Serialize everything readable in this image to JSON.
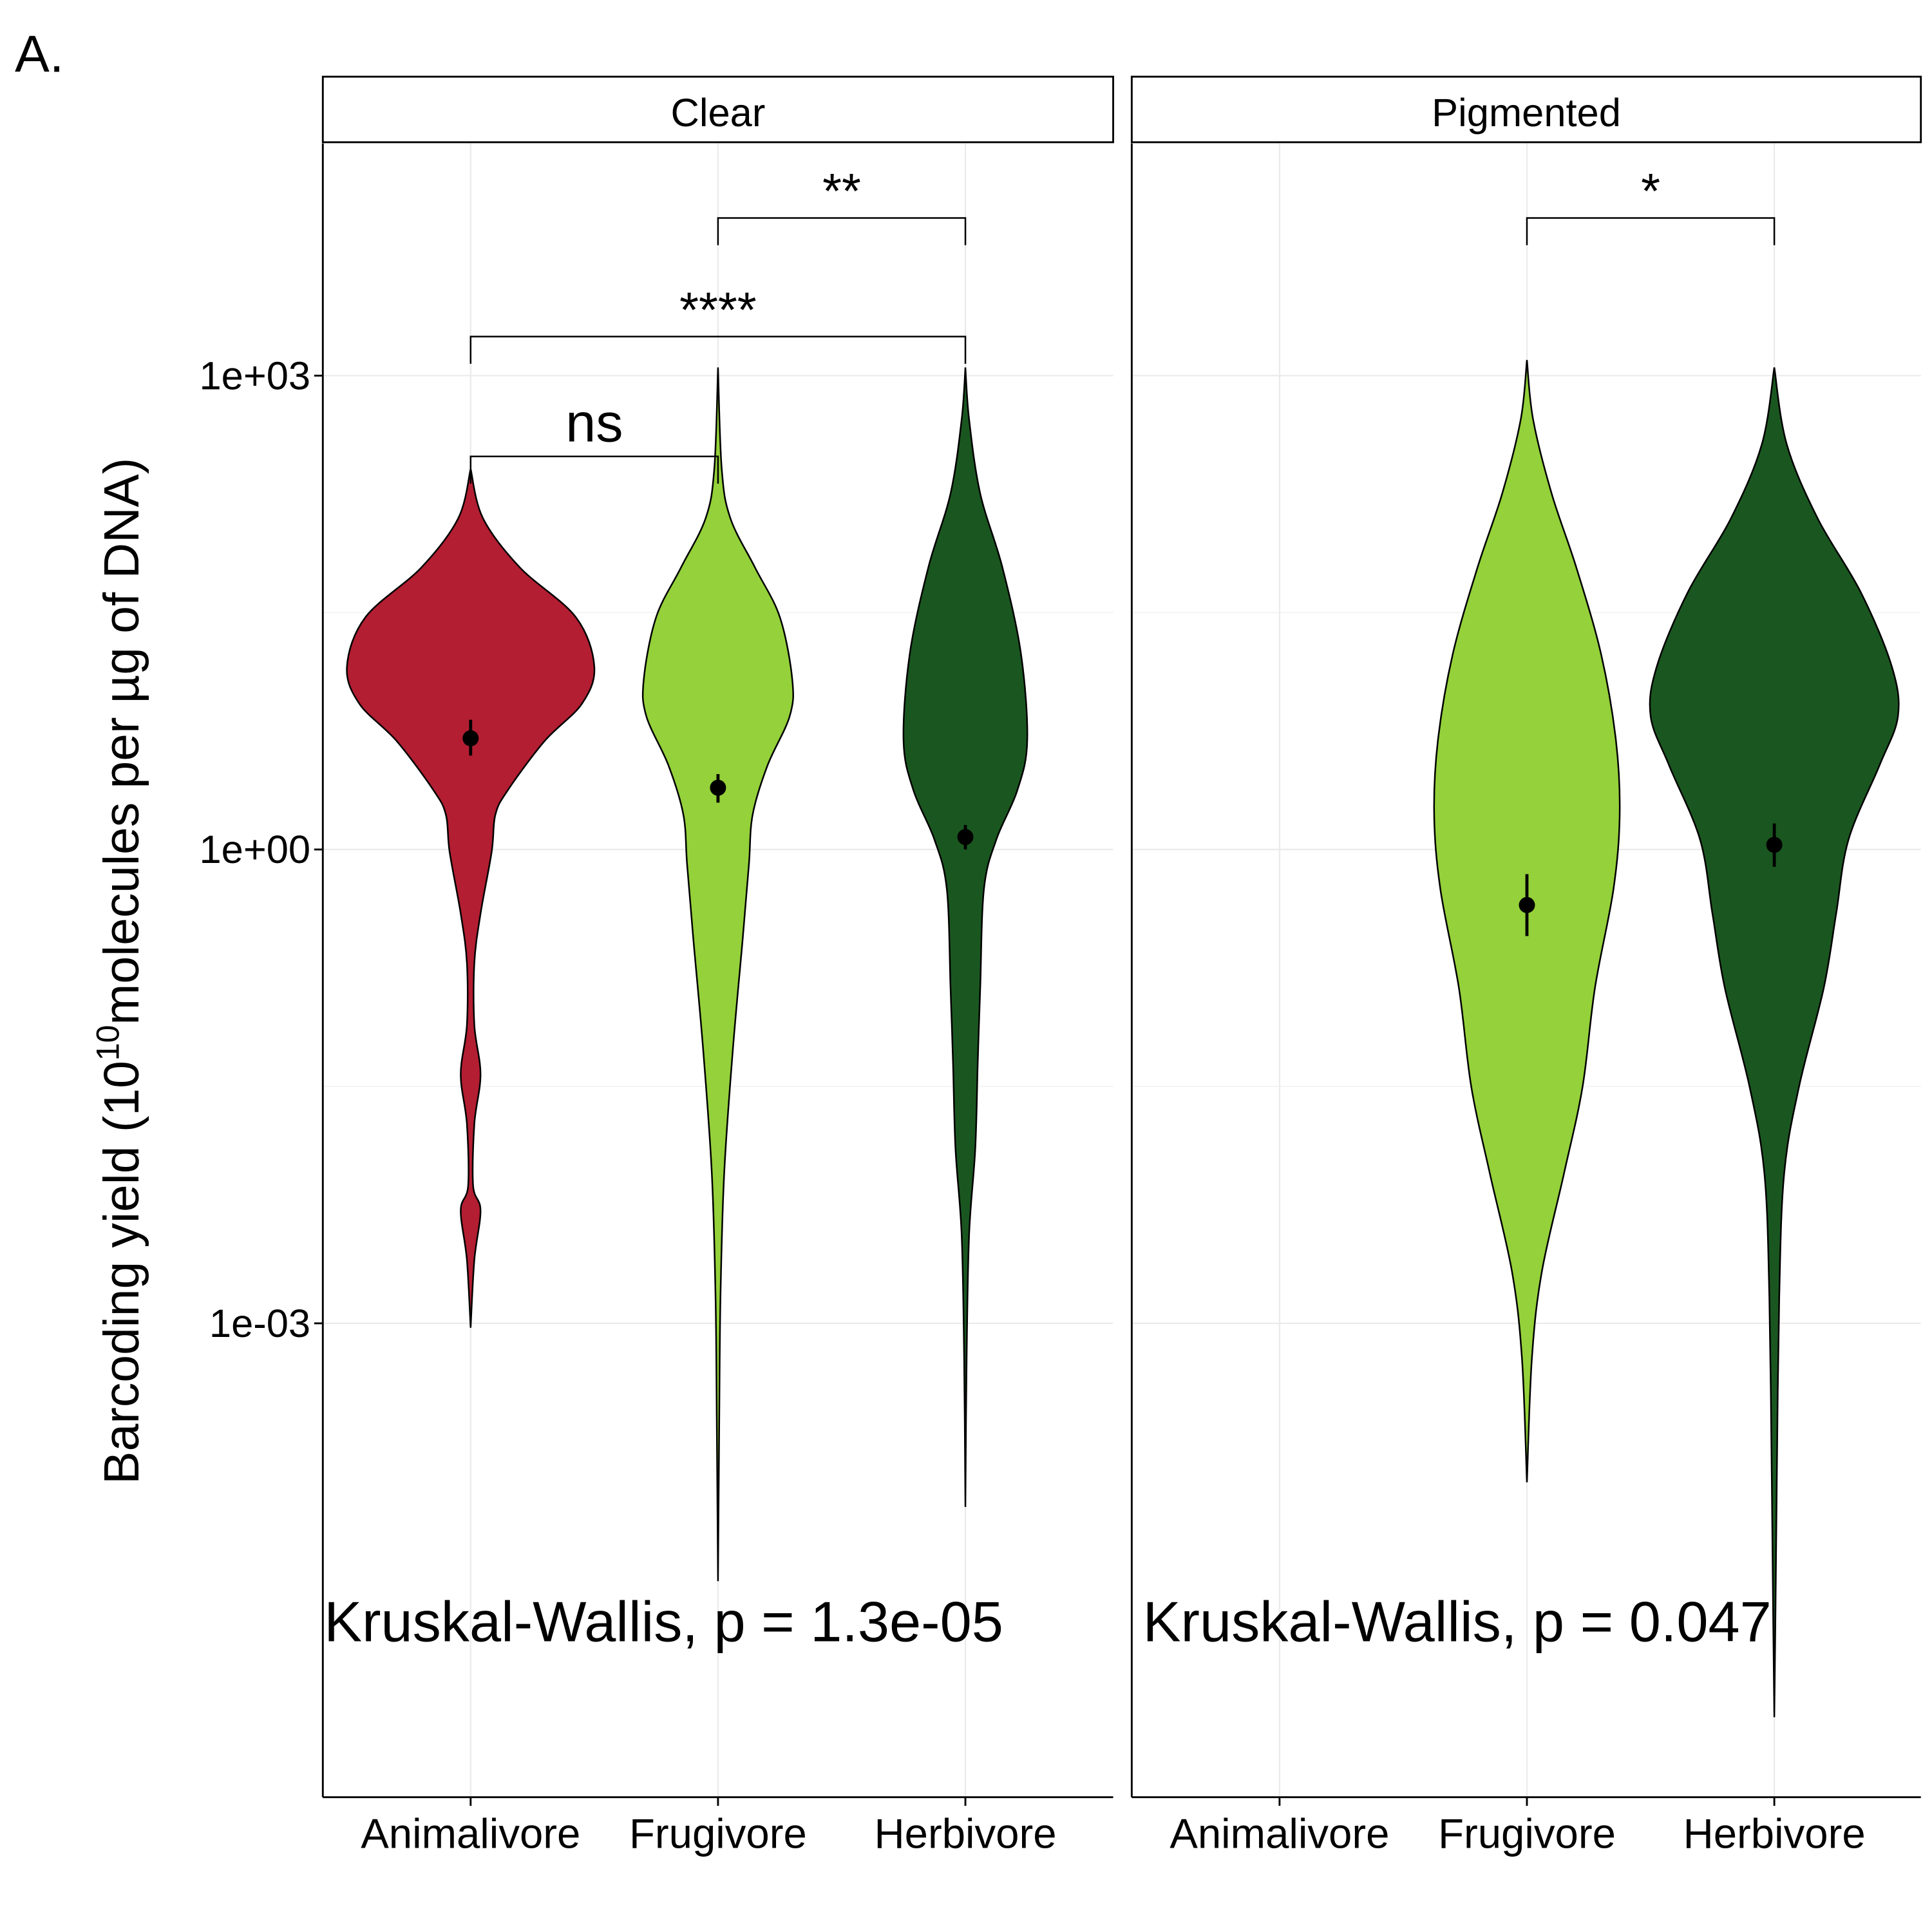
{
  "panel_tag": "A.",
  "y_axis": {
    "label": {
      "before": "Barcoding yield (10",
      "sup": "10",
      "after": "molecules per µg of DNA)"
    },
    "log": true,
    "ylim": [
      1e-06,
      29500
    ],
    "yticks": [
      {
        "value": 1000,
        "label": "1e+03"
      },
      {
        "value": 1,
        "label": "1e+00"
      },
      {
        "value": 0.001,
        "label": "1e-03"
      }
    ],
    "minor_grid": [
      31.62,
      0.03162
    ],
    "grid": true
  },
  "chart_data": [
    {
      "type": "violin",
      "facet": "Clear",
      "categories": [
        "Animalivore",
        "Frugivore",
        "Herbivore"
      ],
      "violins": [
        {
          "color": "#b31e32",
          "density_y": [
            257,
            125,
            60.8,
            29.6,
            14.4,
            8.38,
            4.88,
            2.37,
            1.66,
            0.965,
            0.392,
            0.191,
            0.0774,
            0.0377,
            0.0183,
            0.00745,
            0.00519,
            0.00252,
            0.000938
          ],
          "density_width": [
            0,
            0.05,
            0.2,
            0.425,
            0.5,
            0.45,
            0.3,
            0.15,
            0.1,
            0.085,
            0.04,
            0.015,
            0.015,
            0.04,
            0.015,
            0.01,
            0.04,
            0.015,
            0
          ],
          "mean": 5.06,
          "low": 3.93,
          "high": 6.63
        },
        {
          "color": "#94d13a",
          "density_y": [
            1127,
            257,
            125,
            60.8,
            29.6,
            12.0,
            7.0,
            3.4,
            1.66,
            0.806,
            0.274,
            0.054,
            0.0089,
            0.00147,
            0.000243,
            2.33e-05
          ],
          "density_width": [
            0,
            0.015,
            0.05,
            0.15,
            0.25,
            0.3,
            0.29,
            0.2,
            0.14,
            0.125,
            0.1,
            0.06,
            0.025,
            0.01,
            0.005,
            0
          ],
          "mean": 2.46,
          "low": 1.98,
          "high": 3.0
        },
        {
          "color": "#1a5720",
          "density_y": [
            1127,
            528,
            179,
            60.8,
            17.2,
            4.88,
            2.37,
            1.155,
            0.562,
            0.133,
            0.0451,
            0.0128,
            0.00362,
            0.000598,
            6.88e-05
          ],
          "density_width": [
            0,
            0.015,
            0.06,
            0.15,
            0.225,
            0.25,
            0.21,
            0.125,
            0.075,
            0.06,
            0.05,
            0.04,
            0.015,
            0.005,
            0
          ],
          "mean": 1.2,
          "low": 1.0,
          "high": 1.43
        }
      ],
      "comparisons": [
        {
          "label": "ns",
          "groups": [
            "Animalivore",
            "Frugivore"
          ],
          "y": 308
        },
        {
          "label": "****",
          "groups": [
            "Animalivore",
            "Herbivore"
          ],
          "y": 1767
        },
        {
          "label": "**",
          "groups": [
            "Frugivore",
            "Herbivore"
          ],
          "y": 9960
        }
      ],
      "annotation": "Kruskal-Wallis, p = 1.3e-05"
    },
    {
      "type": "violin",
      "facet": "Pigmented",
      "categories": [
        "Animalivore",
        "Frugivore",
        "Herbivore"
      ],
      "violins": [
        null,
        {
          "color": "#94d13a",
          "density_y": [
            1256,
            528,
            179,
            60.8,
            17.2,
            4.88,
            1.66,
            0.562,
            0.133,
            0.0315,
            0.0089,
            0.00211,
            0.000598,
            9.85e-05
          ],
          "density_width": [
            0,
            0.025,
            0.1,
            0.2,
            0.3,
            0.36,
            0.375,
            0.35,
            0.275,
            0.225,
            0.15,
            0.06,
            0.02,
            0
          ],
          "mean": 0.445,
          "low": 0.283,
          "high": 0.698
        },
        {
          "color": "#1a5720",
          "density_y": [
            1127,
            369,
            125,
            42.4,
            14.4,
            7.0,
            3.4,
            1.155,
            0.392,
            0.133,
            0.0315,
            0.0089,
            0.00147,
            9.85e-05,
            1.63e-05,
            3.21e-06
          ],
          "density_width": [
            0,
            0.05,
            0.175,
            0.35,
            0.475,
            0.5,
            0.425,
            0.3,
            0.25,
            0.2,
            0.1,
            0.04,
            0.02,
            0.01,
            0.005,
            0
          ],
          "mean": 1.07,
          "low": 0.777,
          "high": 1.46
        }
      ],
      "comparisons": [
        {
          "label": "*",
          "groups": [
            "Frugivore",
            "Herbivore"
          ],
          "y": 9960
        }
      ],
      "annotation": "Kruskal-Wallis, p = 0.047"
    }
  ]
}
